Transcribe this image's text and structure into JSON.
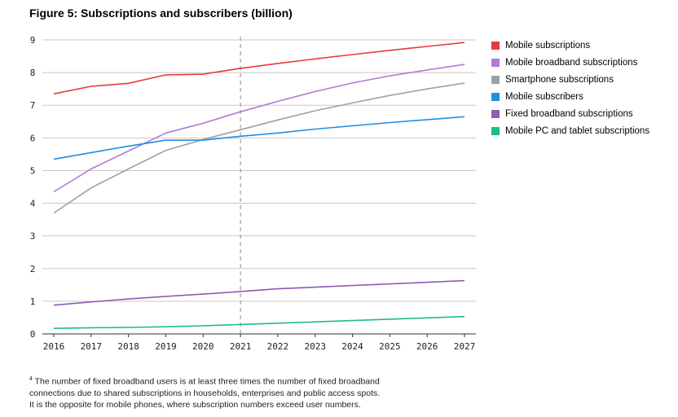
{
  "title": "Figure 5: Subscriptions and subscribers (billion)",
  "footnote": {
    "marker": "4",
    "lines": [
      "The number of fixed broadband users is at least three times the number of fixed broadband",
      "connections due to shared subscriptions in households, enterprises and public access spots.",
      "It is the opposite for mobile phones, where subscription numbers exceed user numbers."
    ]
  },
  "chart_data": {
    "type": "line",
    "title": "Figure 5: Subscriptions and subscribers (billion)",
    "x": [
      2016,
      2017,
      2018,
      2019,
      2020,
      2021,
      2022,
      2023,
      2024,
      2025,
      2026,
      2027
    ],
    "x_tick_labels": [
      "2016",
      "2017",
      "2018",
      "2019",
      "2020",
      "2021",
      "2022",
      "2023",
      "2024",
      "2025",
      "2026",
      "2027"
    ],
    "y_tick_labels": [
      "0",
      "1",
      "2",
      "3",
      "4",
      "5",
      "6",
      "7",
      "8",
      "9"
    ],
    "ylim": [
      0,
      9
    ],
    "grid": true,
    "legend_position": "right",
    "reference_line_x": 2021,
    "series": [
      {
        "name": "Mobile subscriptions",
        "color": "#e83a3a",
        "values": [
          7.35,
          7.58,
          7.67,
          7.93,
          7.95,
          8.13,
          8.28,
          8.42,
          8.55,
          8.68,
          8.8,
          8.92
        ]
      },
      {
        "name": "Mobile broadband subscriptions",
        "color": "#b17ad8",
        "values": [
          4.35,
          5.05,
          5.6,
          6.15,
          6.45,
          6.8,
          7.12,
          7.42,
          7.68,
          7.9,
          8.08,
          8.25
        ]
      },
      {
        "name": "Smartphone subscriptions",
        "color": "#a0a0a0",
        "values": [
          3.7,
          4.47,
          5.05,
          5.62,
          5.95,
          6.25,
          6.55,
          6.83,
          7.07,
          7.3,
          7.5,
          7.68
        ]
      },
      {
        "name": "Mobile subscribers",
        "color": "#1e8fe1",
        "values": [
          5.35,
          5.55,
          5.75,
          5.93,
          5.93,
          6.05,
          6.15,
          6.27,
          6.37,
          6.47,
          6.56,
          6.65
        ]
      },
      {
        "name": "Fixed broadband subscriptions",
        "color": "#8e5bb5",
        "values": [
          0.88,
          0.98,
          1.07,
          1.15,
          1.22,
          1.3,
          1.38,
          1.43,
          1.48,
          1.53,
          1.58,
          1.63
        ]
      },
      {
        "name": "Mobile PC and tablet subscriptions",
        "color": "#1fbf7a",
        "values": [
          0.17,
          0.19,
          0.2,
          0.22,
          0.25,
          0.29,
          0.33,
          0.37,
          0.41,
          0.45,
          0.49,
          0.53
        ]
      }
    ]
  }
}
